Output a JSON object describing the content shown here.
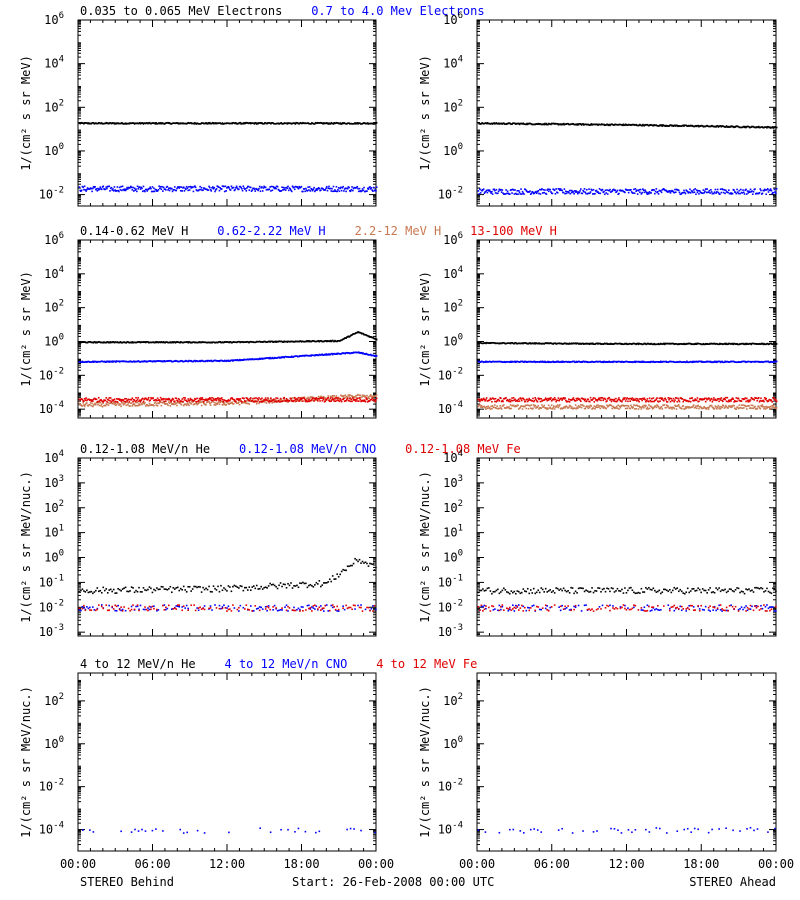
{
  "footer": {
    "left": "STEREO Behind",
    "center": "Start: 26-Feb-2008 00:00 UTC",
    "right": "STEREO Ahead"
  },
  "x_ticks": [
    "00:00",
    "06:00",
    "12:00",
    "18:00",
    "00:00"
  ],
  "chart_data": [
    {
      "type": "scatter",
      "row": 1,
      "titles": [
        {
          "text": "0.035 to 0.065 MeV Electrons",
          "color": "#000000"
        },
        {
          "text": "0.7 to 4.0 Mev Electrons",
          "color": "#0000ff"
        }
      ],
      "ylabel": "1/(cm² s sr MeV)",
      "yscale": "log",
      "ylim": [
        0.003,
        1000000
      ],
      "y_ticks": [
        "10-2",
        "100",
        "102",
        "104",
        "106"
      ],
      "xlim": [
        0,
        24
      ],
      "x_unit": "hours",
      "series": [
        {
          "color": "#000000",
          "behind": [
            [
              0,
              20
            ],
            [
              12,
              20
            ],
            [
              24,
              20
            ]
          ],
          "ahead": [
            [
              0,
              20
            ],
            [
              12,
              17
            ],
            [
              24,
              13
            ]
          ]
        },
        {
          "color": "#0000ff",
          "behind": [
            [
              0,
              0.02
            ],
            [
              12,
              0.02
            ],
            [
              24,
              0.02
            ]
          ],
          "ahead": [
            [
              0,
              0.015
            ],
            [
              12,
              0.015
            ],
            [
              24,
              0.015
            ]
          ]
        }
      ]
    },
    {
      "type": "scatter",
      "row": 2,
      "titles": [
        {
          "text": "0.14-0.62 MeV H",
          "color": "#000000"
        },
        {
          "text": "0.62-2.22 MeV H",
          "color": "#0000ff"
        },
        {
          "text": "2.2-12 MeV H",
          "color": "#c87850"
        },
        {
          "text": "13-100 MeV H",
          "color": "#e00000"
        }
      ],
      "ylabel": "1/(cm² s sr MeV)",
      "yscale": "log",
      "ylim": [
        3e-05,
        1000000
      ],
      "y_ticks": [
        "10-4",
        "10-2",
        "100",
        "102",
        "104",
        "106"
      ],
      "xlim": [
        0,
        24
      ],
      "x_unit": "hours",
      "series": [
        {
          "color": "#000000",
          "behind": [
            [
              0,
              1.0
            ],
            [
              12,
              1.0
            ],
            [
              21,
              1.2
            ],
            [
              22.5,
              4
            ],
            [
              24,
              1.5
            ]
          ],
          "ahead": [
            [
              0,
              0.9
            ],
            [
              12,
              0.8
            ],
            [
              24,
              0.8
            ]
          ]
        },
        {
          "color": "#0000ff",
          "behind": [
            [
              0,
              0.07
            ],
            [
              12,
              0.08
            ],
            [
              22.5,
              0.25
            ],
            [
              24,
              0.15
            ]
          ],
          "ahead": [
            [
              0,
              0.07
            ],
            [
              12,
              0.07
            ],
            [
              24,
              0.07
            ]
          ]
        },
        {
          "color": "#c87850",
          "behind": [
            [
              0,
              0.0002
            ],
            [
              12,
              0.00025
            ],
            [
              22,
              0.0006
            ],
            [
              24,
              0.0006
            ]
          ],
          "ahead": [
            [
              0,
              0.00015
            ],
            [
              12,
              0.00015
            ],
            [
              24,
              0.00015
            ]
          ]
        },
        {
          "color": "#e00000",
          "behind": [
            [
              0,
              0.0004
            ],
            [
              12,
              0.0004
            ],
            [
              24,
              0.0004
            ]
          ],
          "ahead": [
            [
              0,
              0.0004
            ],
            [
              12,
              0.0004
            ],
            [
              24,
              0.0004
            ]
          ]
        }
      ]
    },
    {
      "type": "scatter",
      "row": 3,
      "titles": [
        {
          "text": "0.12-1.08 MeV/n He",
          "color": "#000000"
        },
        {
          "text": "0.12-1.08 MeV/n CNO",
          "color": "#0000ff"
        },
        {
          "text": "0.12-1.08 MeV Fe",
          "color": "#e00000"
        }
      ],
      "ylabel": "1/(cm² s sr MeV/nuc.)",
      "yscale": "log",
      "ylim": [
        0.0007,
        10000
      ],
      "y_ticks": [
        "10-3",
        "10-2",
        "10-1",
        "100",
        "101",
        "102",
        "103",
        "104"
      ],
      "xlim": [
        0,
        24
      ],
      "x_unit": "hours",
      "series": [
        {
          "color": "#000000",
          "behind": [
            [
              0,
              0.05
            ],
            [
              12,
              0.06
            ],
            [
              20,
              0.1
            ],
            [
              22.5,
              0.9
            ],
            [
              24,
              0.4
            ]
          ],
          "ahead": [
            [
              0,
              0.05
            ],
            [
              12,
              0.05
            ],
            [
              24,
              0.05
            ]
          ]
        },
        {
          "color": "#0000ff",
          "behind": [
            [
              0,
              0.01
            ],
            [
              24,
              0.01
            ]
          ],
          "ahead": [
            [
              0,
              0.01
            ],
            [
              24,
              0.01
            ]
          ]
        },
        {
          "color": "#e00000",
          "behind": [
            [
              0,
              0.01
            ],
            [
              24,
              0.01
            ]
          ],
          "ahead": [
            [
              0,
              0.01
            ],
            [
              24,
              0.01
            ]
          ]
        }
      ]
    },
    {
      "type": "scatter",
      "row": 4,
      "titles": [
        {
          "text": "4 to 12 MeV/n He",
          "color": "#000000"
        },
        {
          "text": "4 to 12 MeV/n CNO",
          "color": "#0000ff"
        },
        {
          "text": "4 to 12 MeV Fe",
          "color": "#e00000"
        }
      ],
      "ylabel": "1/(cm² s sr MeV/nuc.)",
      "yscale": "log",
      "ylim": [
        1e-05,
        2000
      ],
      "y_ticks": [
        "10-4",
        "10-2",
        "100",
        "102"
      ],
      "xlim": [
        0,
        24
      ],
      "x_unit": "hours",
      "series": [
        {
          "color": "#0000ff",
          "behind": [
            [
              0,
              0.0001
            ],
            [
              24,
              0.0001
            ]
          ],
          "ahead": [
            [
              0,
              0.0001
            ],
            [
              24,
              0.0001
            ]
          ]
        }
      ]
    }
  ]
}
